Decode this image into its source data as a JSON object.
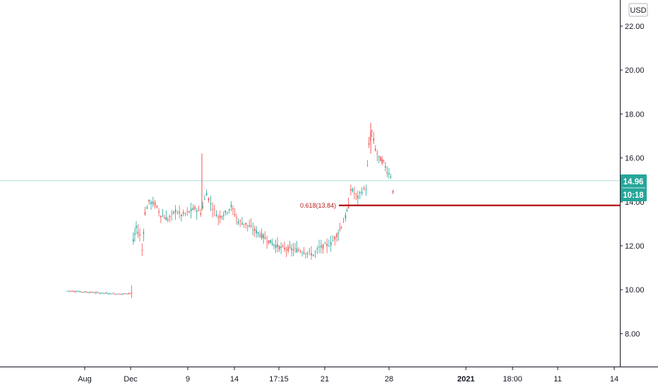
{
  "currency": "USD",
  "price_tag": {
    "value": "14.96",
    "countdown": "10:18"
  },
  "fib_label": "0.618(13.84)",
  "colors": {
    "up": "#26a69a",
    "down": "#ef5350",
    "fib_line": "#b71c1c",
    "price_line": "#26a69a",
    "tag_bg": "#26a69a",
    "axis": "#787b86",
    "axis_line": "#131722"
  },
  "chart_data": {
    "type": "candlestick",
    "x_tick_labels": [
      "Aug",
      "Dec",
      "9",
      "14",
      "17:15",
      "21",
      "28",
      "2021",
      "18:00",
      "11",
      "14"
    ],
    "y_ticks": [
      8.0,
      10.0,
      12.0,
      14.0,
      16.0,
      18.0,
      20.0,
      22.0
    ],
    "y_tick_labels": [
      "8.00",
      "10.00",
      "12.00",
      "14.00",
      "16.00",
      "18.00",
      "20.00",
      "22.00"
    ],
    "ylim": [
      6.6,
      22.9
    ],
    "last_price": 14.96,
    "fib_level": {
      "ratio": 0.618,
      "price": 13.84
    },
    "price_path": [
      {
        "x": 0.0,
        "y": 9.95
      },
      {
        "x": 0.03,
        "y": 9.9
      },
      {
        "x": 0.06,
        "y": 9.85
      },
      {
        "x": 0.09,
        "y": 9.8
      },
      {
        "x": 0.11,
        "y": 9.85
      },
      {
        "x": 0.113,
        "y": 12.2
      },
      {
        "x": 0.118,
        "y": 12.8
      },
      {
        "x": 0.124,
        "y": 12.5
      },
      {
        "x": 0.128,
        "y": 11.8
      },
      {
        "x": 0.133,
        "y": 13.5
      },
      {
        "x": 0.14,
        "y": 14.0
      },
      {
        "x": 0.15,
        "y": 13.9
      },
      {
        "x": 0.16,
        "y": 13.4
      },
      {
        "x": 0.172,
        "y": 13.2
      },
      {
        "x": 0.185,
        "y": 13.6
      },
      {
        "x": 0.195,
        "y": 13.4
      },
      {
        "x": 0.205,
        "y": 13.5
      },
      {
        "x": 0.218,
        "y": 13.7
      },
      {
        "x": 0.228,
        "y": 13.5
      },
      {
        "x": 0.238,
        "y": 14.4
      },
      {
        "x": 0.245,
        "y": 13.9
      },
      {
        "x": 0.258,
        "y": 13.3
      },
      {
        "x": 0.27,
        "y": 13.5
      },
      {
        "x": 0.28,
        "y": 13.8
      },
      {
        "x": 0.292,
        "y": 13.1
      },
      {
        "x": 0.305,
        "y": 13.0
      },
      {
        "x": 0.32,
        "y": 12.7
      },
      {
        "x": 0.335,
        "y": 12.4
      },
      {
        "x": 0.35,
        "y": 12.1
      },
      {
        "x": 0.365,
        "y": 11.9
      },
      {
        "x": 0.38,
        "y": 11.85
      },
      {
        "x": 0.395,
        "y": 11.8
      },
      {
        "x": 0.41,
        "y": 11.7
      },
      {
        "x": 0.42,
        "y": 11.6
      },
      {
        "x": 0.43,
        "y": 11.9
      },
      {
        "x": 0.44,
        "y": 12.0
      },
      {
        "x": 0.45,
        "y": 12.1
      },
      {
        "x": 0.46,
        "y": 12.5
      },
      {
        "x": 0.468,
        "y": 12.9
      },
      {
        "x": 0.475,
        "y": 13.3
      },
      {
        "x": 0.48,
        "y": 13.8
      },
      {
        "x": 0.484,
        "y": 14.6
      },
      {
        "x": 0.49,
        "y": 14.4
      },
      {
        "x": 0.496,
        "y": 14.2
      },
      {
        "x": 0.503,
        "y": 14.5
      },
      {
        "x": 0.51,
        "y": 14.6
      },
      {
        "x": 0.515,
        "y": 16.6
      },
      {
        "x": 0.52,
        "y": 17.2
      },
      {
        "x": 0.526,
        "y": 16.4
      },
      {
        "x": 0.532,
        "y": 16.0
      },
      {
        "x": 0.54,
        "y": 15.8
      },
      {
        "x": 0.546,
        "y": 15.4
      },
      {
        "x": 0.552,
        "y": 15.2
      },
      {
        "x": 0.556,
        "y": 14.5
      },
      {
        "x": 0.56,
        "y": 14.96
      }
    ],
    "wick_spikes": [
      {
        "x": 0.23,
        "low": 13.6,
        "high": 16.2
      },
      {
        "x": 0.518,
        "low": 16.2,
        "high": 17.6
      }
    ]
  }
}
